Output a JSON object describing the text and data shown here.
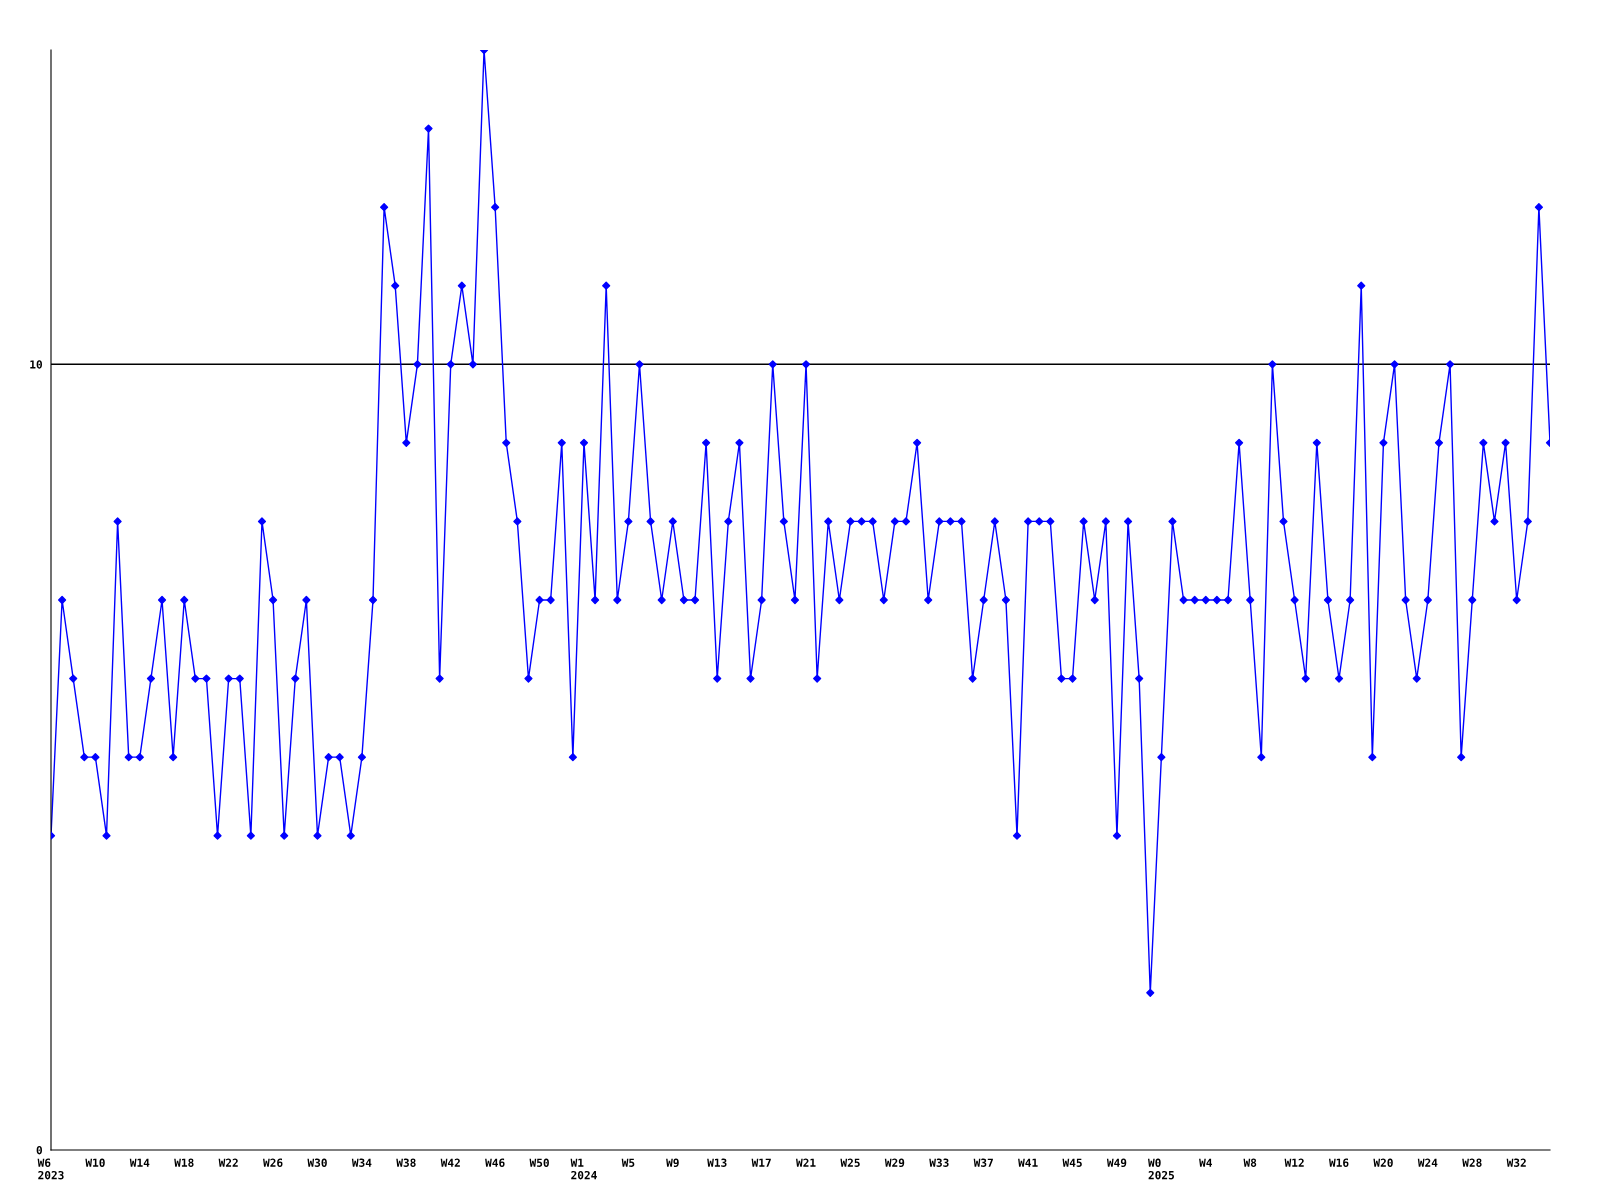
{
  "chart_data": {
    "type": "line",
    "categories": [
      "W6\n2023",
      null,
      null,
      null,
      "W10",
      null,
      null,
      null,
      "W14",
      null,
      null,
      null,
      "W18",
      null,
      null,
      null,
      "W22",
      null,
      null,
      null,
      "W26",
      null,
      null,
      null,
      "W30",
      null,
      null,
      null,
      "W34",
      null,
      null,
      null,
      "W38",
      null,
      null,
      null,
      "W42",
      null,
      null,
      null,
      "W46",
      null,
      null,
      null,
      "W50",
      null,
      null,
      null,
      "W1\n2024",
      null,
      null,
      null,
      "W5",
      null,
      null,
      null,
      "W9",
      null,
      null,
      null,
      "W13",
      null,
      null,
      null,
      "W17",
      null,
      null,
      null,
      "W21",
      null,
      null,
      null,
      "W25",
      null,
      null,
      null,
      "W29",
      null,
      null,
      null,
      "W33",
      null,
      null,
      null,
      "W37",
      null,
      null,
      null,
      "W41",
      null,
      null,
      null,
      "W45",
      null,
      null,
      null,
      "W49",
      null,
      null,
      null,
      "W0\n2025",
      null,
      null,
      null,
      "W4",
      null,
      null,
      null,
      "W8",
      null,
      null,
      null,
      "W12",
      null,
      null,
      null,
      "W16",
      null,
      null,
      null,
      "W20",
      null,
      null,
      null,
      "W24",
      null,
      null,
      null,
      "W28",
      null,
      null,
      null,
      "W32",
      null,
      null,
      null
    ],
    "series": [
      {
        "color": "#0000ff",
        "values": [
          4,
          7,
          6,
          5,
          5,
          4,
          8,
          5,
          5,
          6,
          7,
          5,
          7,
          6,
          6,
          4,
          6,
          6,
          4,
          8,
          7,
          4,
          6,
          7,
          4,
          5,
          5,
          4,
          5,
          7,
          12,
          11,
          9,
          10,
          13,
          6,
          10,
          11,
          10,
          14,
          12,
          9,
          8,
          6,
          7,
          7,
          9,
          5,
          9,
          7,
          11,
          7,
          8,
          10,
          8,
          7,
          8,
          7,
          7,
          9,
          6,
          8,
          9,
          6,
          7,
          10,
          8,
          7,
          10,
          6,
          8,
          7,
          8,
          8,
          8,
          7,
          8,
          8,
          9,
          7,
          8,
          8,
          8,
          6,
          7,
          8,
          7,
          4,
          8,
          8,
          8,
          6,
          6,
          8,
          7,
          8,
          4,
          8,
          6,
          2,
          5,
          8,
          7,
          7,
          7,
          7,
          7,
          9,
          7,
          5,
          10,
          8,
          7,
          6,
          9,
          7,
          6,
          7,
          11,
          5,
          9,
          10,
          7,
          6,
          7,
          9,
          10,
          5,
          7,
          9,
          8,
          9,
          7,
          8,
          12,
          9
        ]
      }
    ],
    "ylim": [
      0,
      14
    ],
    "yticks": [
      0,
      10
    ],
    "ref_lines": [
      {
        "axis": "y",
        "value": 10,
        "color": "#000000"
      }
    ],
    "marker": "diamond",
    "line_style": "solid",
    "grid": false,
    "legend": false
  }
}
